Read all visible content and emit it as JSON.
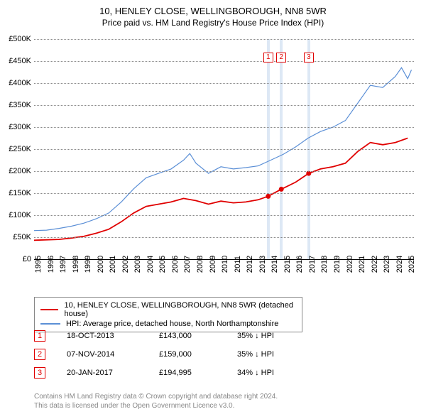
{
  "title": "10, HENLEY CLOSE, WELLINGBOROUGH, NN8 5WR",
  "subtitle": "Price paid vs. HM Land Registry's House Price Index (HPI)",
  "chart": {
    "type": "line",
    "background_color": "#ffffff",
    "grid_color": "#888888",
    "ylim": [
      0,
      500000
    ],
    "ytick_step": 50000,
    "ylabels": [
      "£0",
      "£50K",
      "£100K",
      "£150K",
      "£200K",
      "£250K",
      "£300K",
      "£350K",
      "£400K",
      "£450K",
      "£500K"
    ],
    "xmin": 1995,
    "xmax": 2025.5,
    "xlabels": [
      "1995",
      "1996",
      "1997",
      "1998",
      "1999",
      "2000",
      "2001",
      "2002",
      "2003",
      "2004",
      "2005",
      "2006",
      "2007",
      "2008",
      "2009",
      "2010",
      "2011",
      "2012",
      "2013",
      "2014",
      "2015",
      "2016",
      "2017",
      "2018",
      "2019",
      "2020",
      "2021",
      "2022",
      "2023",
      "2024",
      "2025"
    ],
    "vbands": [
      {
        "start": 2013.7,
        "end": 2013.9
      },
      {
        "start": 2014.75,
        "end": 2014.95
      },
      {
        "start": 2016.95,
        "end": 2017.15
      }
    ],
    "vband_color": "#dde8f5",
    "markers": [
      {
        "label": "1",
        "x": 2013.8,
        "top_y": 30000
      },
      {
        "label": "2",
        "x": 2014.85,
        "top_y": 30000
      },
      {
        "label": "3",
        "x": 2017.05,
        "top_y": 30000
      }
    ],
    "marker_border_color": "#e00000",
    "marker_text_color": "#e00000",
    "series": [
      {
        "name": "property",
        "color": "#e00000",
        "width": 1.8,
        "points": [
          [
            1995,
            43000
          ],
          [
            1996,
            44000
          ],
          [
            1997,
            45000
          ],
          [
            1998,
            48000
          ],
          [
            1999,
            52000
          ],
          [
            2000,
            59000
          ],
          [
            2001,
            68000
          ],
          [
            2002,
            85000
          ],
          [
            2003,
            105000
          ],
          [
            2004,
            120000
          ],
          [
            2005,
            125000
          ],
          [
            2006,
            130000
          ],
          [
            2007,
            138000
          ],
          [
            2008,
            133000
          ],
          [
            2009,
            125000
          ],
          [
            2010,
            132000
          ],
          [
            2011,
            128000
          ],
          [
            2012,
            130000
          ],
          [
            2013,
            135000
          ],
          [
            2013.8,
            143000
          ],
          [
            2014.85,
            159000
          ],
          [
            2016,
            175000
          ],
          [
            2017.05,
            194995
          ],
          [
            2018,
            205000
          ],
          [
            2019,
            210000
          ],
          [
            2020,
            218000
          ],
          [
            2021,
            245000
          ],
          [
            2022,
            265000
          ],
          [
            2023,
            260000
          ],
          [
            2024,
            265000
          ],
          [
            2025,
            275000
          ]
        ],
        "dots": [
          {
            "x": 2013.8,
            "y": 143000
          },
          {
            "x": 2014.85,
            "y": 159000
          },
          {
            "x": 2017.05,
            "y": 194995
          }
        ]
      },
      {
        "name": "hpi",
        "color": "#5b8fd6",
        "width": 1.2,
        "points": [
          [
            1995,
            65000
          ],
          [
            1996,
            66000
          ],
          [
            1997,
            70000
          ],
          [
            1998,
            75000
          ],
          [
            1999,
            82000
          ],
          [
            2000,
            92000
          ],
          [
            2001,
            105000
          ],
          [
            2002,
            130000
          ],
          [
            2003,
            160000
          ],
          [
            2004,
            185000
          ],
          [
            2005,
            195000
          ],
          [
            2006,
            205000
          ],
          [
            2007,
            225000
          ],
          [
            2007.5,
            240000
          ],
          [
            2008,
            218000
          ],
          [
            2009,
            195000
          ],
          [
            2010,
            210000
          ],
          [
            2011,
            205000
          ],
          [
            2012,
            208000
          ],
          [
            2013,
            212000
          ],
          [
            2014,
            225000
          ],
          [
            2015,
            238000
          ],
          [
            2016,
            255000
          ],
          [
            2017,
            275000
          ],
          [
            2018,
            290000
          ],
          [
            2019,
            300000
          ],
          [
            2020,
            315000
          ],
          [
            2021,
            355000
          ],
          [
            2022,
            395000
          ],
          [
            2023,
            390000
          ],
          [
            2024,
            415000
          ],
          [
            2024.5,
            435000
          ],
          [
            2025,
            410000
          ],
          [
            2025.3,
            430000
          ]
        ]
      }
    ]
  },
  "legend": {
    "items": [
      {
        "color": "#e00000",
        "label": "10, HENLEY CLOSE, WELLINGBOROUGH, NN8 5WR (detached house)"
      },
      {
        "color": "#5b8fd6",
        "label": "HPI: Average price, detached house, North Northamptonshire"
      }
    ]
  },
  "sales": [
    {
      "num": "1",
      "date": "18-OCT-2013",
      "price": "£143,000",
      "diff": "35% ↓ HPI"
    },
    {
      "num": "2",
      "date": "07-NOV-2014",
      "price": "£159,000",
      "diff": "35% ↓ HPI"
    },
    {
      "num": "3",
      "date": "20-JAN-2017",
      "price": "£194,995",
      "diff": "34% ↓ HPI"
    }
  ],
  "attribution": {
    "line1": "Contains HM Land Registry data © Crown copyright and database right 2024.",
    "line2": "This data is licensed under the Open Government Licence v3.0."
  }
}
